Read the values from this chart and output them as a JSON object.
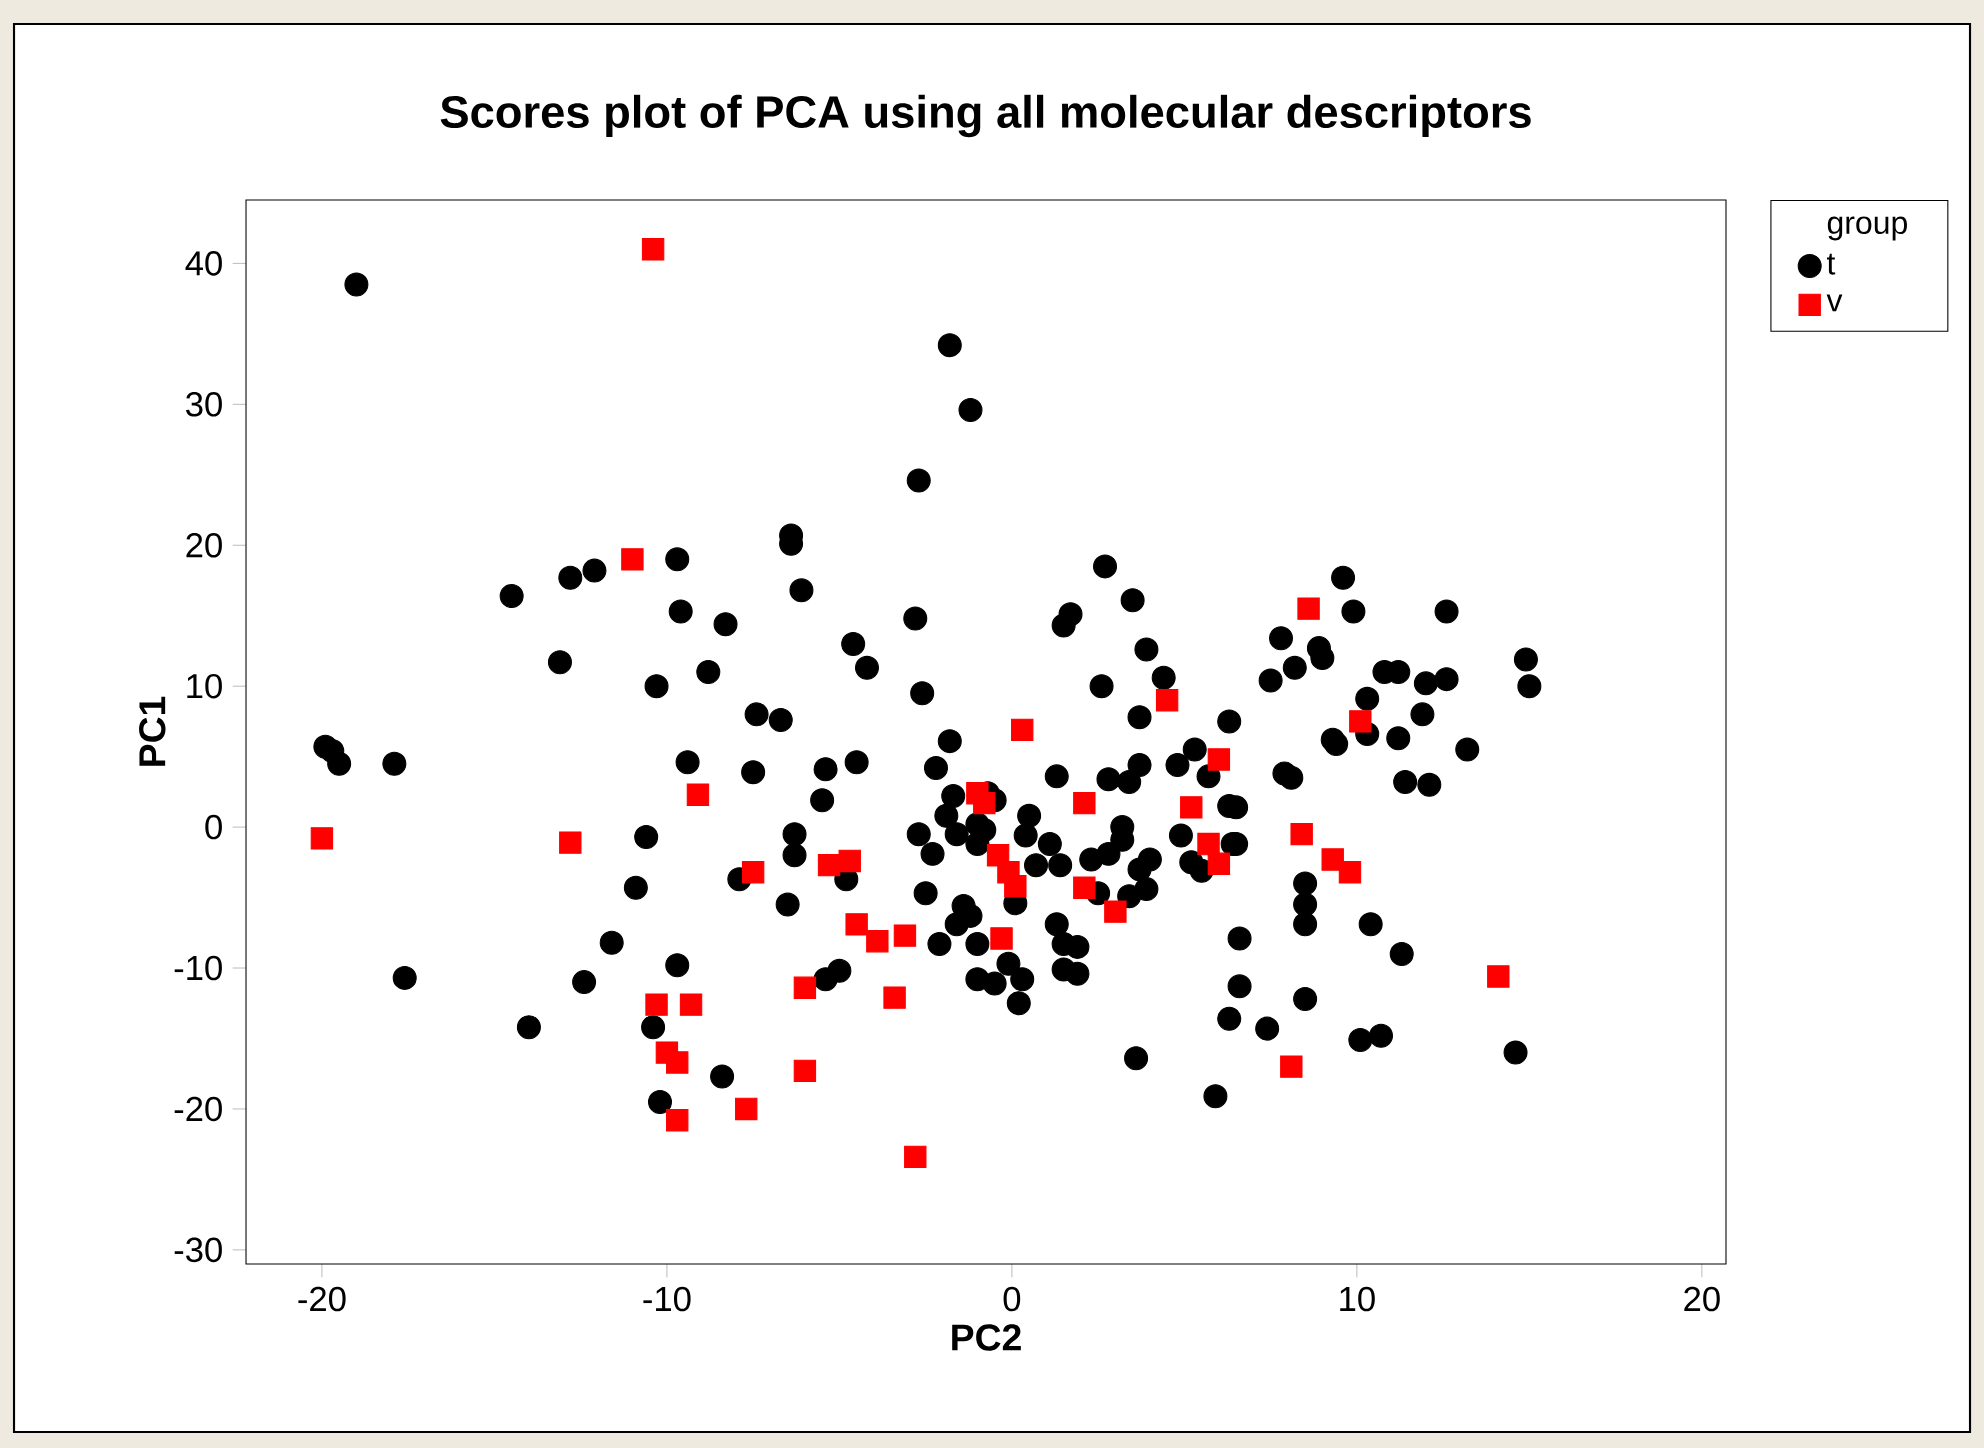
{
  "chart_data": {
    "type": "scatter",
    "title": "Scores plot of PCA using all molecular descriptors",
    "xlabel": "PC2",
    "ylabel": "PC1",
    "legend_title": "group",
    "legend": "top right",
    "xlim": [
      -22.2,
      20.7
    ],
    "ylim": [
      -31,
      44.5
    ],
    "xticks": [
      -20,
      -10,
      0,
      10,
      20
    ],
    "yticks": [
      -30,
      -20,
      -10,
      0,
      10,
      20,
      30,
      40
    ],
    "series": [
      {
        "name": "t",
        "color": "#000000",
        "marker": "circle",
        "x": [
          -19.0,
          -19.9,
          -19.7,
          -19.5,
          -17.9,
          -17.6,
          -14.5,
          -14.0,
          -13.1,
          -12.8,
          -12.1,
          -12.4,
          -11.6,
          -10.9,
          -10.6,
          -10.3,
          -10.4,
          -10.2,
          -9.7,
          -9.6,
          -9.4,
          -9.7,
          -8.8,
          -8.3,
          -8.4,
          -7.4,
          -7.5,
          -7.9,
          -6.7,
          -6.5,
          -6.4,
          -6.4,
          -6.1,
          -6.3,
          -6.3,
          -5.4,
          -5.5,
          -5.4,
          -5.0,
          -4.6,
          -4.2,
          -4.5,
          -4.8,
          -1.8,
          -1.2,
          -2.7,
          -2.8,
          -2.6,
          -1.8,
          -2.2,
          -2.7,
          -2.3,
          -2.5,
          -2.1,
          -1.7,
          -1.9,
          -1.6,
          -0.7,
          -0.5,
          -1.0,
          -0.8,
          -1.0,
          0.5,
          0.4,
          0.7,
          0.2,
          0.1,
          -1.4,
          -1.2,
          -1.6,
          -1.0,
          -1.0,
          -0.5,
          0.3,
          -0.1,
          0.2,
          1.1,
          1.4,
          1.3,
          1.3,
          1.5,
          1.9,
          1.5,
          1.9,
          2.3,
          2.8,
          2.5,
          2.8,
          3.4,
          3.7,
          3.2,
          3.2,
          3.7,
          4.0,
          3.9,
          3.4,
          4.8,
          5.3,
          5.7,
          6.3,
          4.9,
          5.2,
          5.5,
          6.4,
          6.6,
          6.6,
          6.3,
          3.6,
          5.9,
          2.7,
          3.5,
          3.9,
          4.4,
          2.6,
          3.7,
          6.3,
          1.5,
          1.7,
          9.6,
          9.9,
          12.6,
          7.8,
          8.9,
          9.0,
          8.2,
          7.5,
          10.8,
          11.2,
          12.0,
          12.6,
          14.9,
          15.0,
          10.3,
          11.9,
          9.3,
          10.3,
          11.2,
          13.2,
          9.4,
          7.9,
          8.1,
          11.4,
          12.1,
          6.5,
          6.5,
          8.5,
          8.5,
          8.5,
          10.4,
          11.3,
          7.4,
          8.5,
          10.1,
          10.7,
          14.6
        ],
        "values": [
          38.5,
          5.7,
          5.4,
          4.5,
          4.5,
          -10.7,
          16.4,
          -14.2,
          11.7,
          17.7,
          18.2,
          -11.0,
          -8.2,
          -4.3,
          -0.7,
          10.0,
          -14.2,
          -19.5,
          19.0,
          15.3,
          4.6,
          -9.8,
          11.0,
          14.4,
          -17.7,
          8.0,
          3.9,
          -3.7,
          7.6,
          -5.5,
          20.7,
          20.1,
          16.8,
          -0.5,
          -2.0,
          4.1,
          1.9,
          -10.8,
          -10.2,
          13.0,
          11.3,
          4.6,
          -3.7,
          34.2,
          29.6,
          24.6,
          14.8,
          9.5,
          6.1,
          4.2,
          -0.5,
          -1.9,
          -4.7,
          -8.3,
          2.2,
          0.8,
          -0.5,
          2.4,
          1.9,
          0.2,
          -0.2,
          -1.2,
          0.8,
          -0.6,
          -2.7,
          null,
          -5.4,
          -5.6,
          -6.3,
          -6.9,
          -8.3,
          -10.8,
          -11.1,
          -10.8,
          -9.7,
          -12.5,
          -1.2,
          -2.7,
          3.6,
          -6.9,
          -8.3,
          -8.5,
          -10.1,
          -10.4,
          -2.3,
          -1.9,
          -4.7,
          3.4,
          3.2,
          4.4,
          0.0,
          -0.9,
          -3.0,
          -2.3,
          -4.4,
          -4.9,
          4.4,
          5.5,
          3.6,
          1.5,
          -0.6,
          -2.5,
          -3.1,
          -1.2,
          -7.9,
          -11.3,
          -13.6,
          -16.4,
          -19.1,
          18.5,
          16.1,
          12.6,
          10.6,
          10.0,
          7.8,
          7.5,
          14.3,
          15.1,
          17.7,
          15.3,
          15.3,
          13.4,
          12.7,
          12.0,
          11.3,
          10.4,
          11.0,
          11.0,
          10.2,
          10.5,
          11.9,
          10.0,
          9.1,
          8.0,
          6.2,
          6.6,
          6.3,
          5.5,
          5.9,
          3.8,
          3.5,
          3.2,
          3.0,
          1.4,
          -1.2,
          -4.0,
          -5.5,
          -6.9,
          -6.9,
          -9.0,
          -14.3,
          -12.2,
          -15.1,
          -14.8,
          -16.0
        ]
      },
      {
        "name": "v",
        "color": "#ff0000",
        "marker": "square",
        "x": [
          -10.4,
          -11.0,
          -20.0,
          -12.8,
          -9.1,
          -7.5,
          -10.3,
          -9.3,
          -10.0,
          -9.7,
          -9.7,
          -7.7,
          -6.0,
          -6.0,
          -5.3,
          -4.7,
          -4.5,
          -3.9,
          -3.4,
          -3.1,
          -2.8,
          -1.0,
          -0.8,
          -0.4,
          -0.1,
          -0.3,
          0.1,
          0.3,
          2.1,
          2.1,
          3.0,
          4.5,
          5.2,
          5.7,
          6.0,
          6.0,
          8.6,
          8.4,
          9.3,
          9.8,
          10.1,
          8.1,
          14.1
        ],
        "values": [
          41.0,
          19.0,
          -0.8,
          -1.1,
          2.3,
          -3.2,
          -12.6,
          -12.6,
          -16.0,
          -16.7,
          -20.8,
          -20.0,
          -11.4,
          -17.3,
          -2.7,
          -2.4,
          -6.9,
          -8.1,
          -12.1,
          -7.7,
          -23.4,
          2.4,
          1.7,
          -2.0,
          -3.2,
          -7.9,
          -4.2,
          6.9,
          1.7,
          -4.3,
          -6.0,
          9.0,
          1.4,
          -1.2,
          -2.6,
          4.8,
          15.5,
          -0.5,
          -2.3,
          -3.2,
          7.5,
          -17.0,
          -10.6
        ]
      }
    ]
  }
}
